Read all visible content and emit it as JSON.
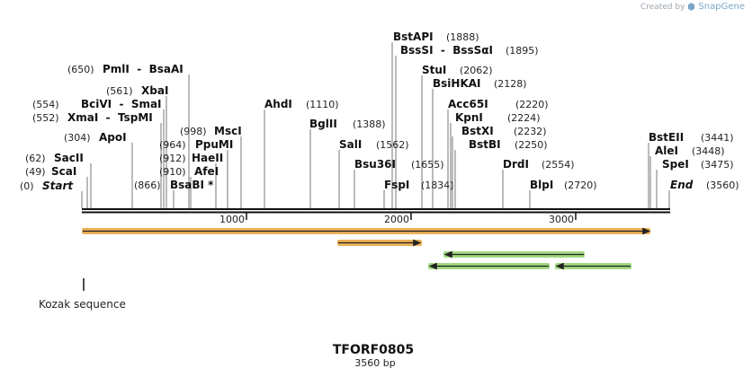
{
  "credit": {
    "prefix": "Created by",
    "brand": "SnapGene"
  },
  "plasmid": {
    "name": "TFORF0805",
    "length_label": "3560 bp",
    "length": 3560
  },
  "ruler": {
    "ticks": [
      "1000",
      "2000",
      "3000"
    ]
  },
  "sites": [
    {
      "name": "Start",
      "pos": "(0)",
      "italic": true
    },
    {
      "name": "ScaI",
      "pos": "(49)"
    },
    {
      "name": "SacII",
      "pos": "(62)"
    },
    {
      "name": "XmaI  -  TspMI",
      "pos": "(552)"
    },
    {
      "name": "BciVI  -  SmaI",
      "pos": "(554)"
    },
    {
      "name": "XbaI",
      "pos": "(561)"
    },
    {
      "name": "PmlI  -  BsaAI",
      "pos": "(650)"
    },
    {
      "name": "ApoI",
      "pos": "(304)"
    },
    {
      "name": "BsaBI *",
      "pos": "(866)"
    },
    {
      "name": "AfeI",
      "pos": "(910)"
    },
    {
      "name": "HaeII",
      "pos": "(912)"
    },
    {
      "name": "PpuMI",
      "pos": "(964)"
    },
    {
      "name": "MscI",
      "pos": "(998)"
    },
    {
      "name": "AhdI",
      "pos": "(1110)"
    },
    {
      "name": "BglII",
      "pos": "(1388)"
    },
    {
      "name": "SalI",
      "pos": "(1562)"
    },
    {
      "name": "Bsu36I",
      "pos": "(1655)"
    },
    {
      "name": "FspI",
      "pos": "(1834)"
    },
    {
      "name": "BstAPI",
      "pos": "(1888)"
    },
    {
      "name": "BssSI  -  BssSαI",
      "pos": "(1895)"
    },
    {
      "name": "StuI",
      "pos": "(2062)"
    },
    {
      "name": "BsiHKAI",
      "pos": "(2128)"
    },
    {
      "name": "Acc65I",
      "pos": "(2220)"
    },
    {
      "name": "KpnI",
      "pos": "(2224)"
    },
    {
      "name": "BstXI",
      "pos": "(2232)"
    },
    {
      "name": "BstBI",
      "pos": "(2250)"
    },
    {
      "name": "DrdI",
      "pos": "(2554)"
    },
    {
      "name": "BlpI",
      "pos": "(2720)"
    },
    {
      "name": "BstEII",
      "pos": "(3441)"
    },
    {
      "name": "AleI",
      "pos": "(3448)"
    },
    {
      "name": "SpeI",
      "pos": "(3475)"
    },
    {
      "name": "End",
      "pos": "(3560)",
      "italic": true
    }
  ],
  "features": [
    {
      "name": "orf-main",
      "direction": "forward",
      "color": "#e8a33a"
    },
    {
      "name": "orf-short",
      "direction": "forward",
      "color": "#e8a33a"
    },
    {
      "name": "orf-reverse-1",
      "direction": "reverse",
      "color": "#8fd16a"
    },
    {
      "name": "orf-reverse-2",
      "direction": "reverse",
      "color": "#8fd16a"
    },
    {
      "name": "orf-reverse-3",
      "direction": "reverse",
      "color": "#8fd16a"
    }
  ],
  "kozak": {
    "label": "Kozak sequence"
  }
}
